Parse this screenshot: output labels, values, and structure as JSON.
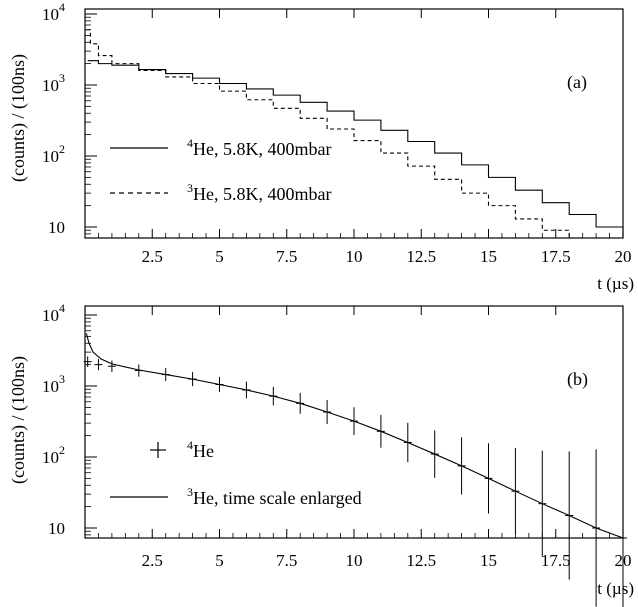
{
  "chart_data": [
    {
      "type": "line",
      "panel_label": "(a)",
      "xlabel": "t (µs)",
      "ylabel": "(counts) / (100ns)",
      "yscale": "log",
      "xlim": [
        0,
        20
      ],
      "ylim": [
        3,
        10000
      ],
      "x_ticks": [
        "2.5",
        "5",
        "7.5",
        "10",
        "12.5",
        "15",
        "17.5",
        "20"
      ],
      "y_ticks": [
        {
          "base": "10",
          "exp": "4"
        },
        {
          "base": "10",
          "exp": "3"
        },
        {
          "base": "10",
          "exp": "2"
        },
        {
          "base": "10",
          "exp": ""
        }
      ],
      "legend_position": "lower-left",
      "series": [
        {
          "name": "He, 5.8K, 400mbar",
          "isotope_sup": "4",
          "style": "solid-histogram",
          "x": [
            0.1,
            0.5,
            1,
            2,
            3,
            4,
            5,
            6,
            7,
            8,
            9,
            10,
            11,
            12,
            13,
            14,
            15,
            16,
            17,
            18,
            19,
            20
          ],
          "y": [
            2200,
            2000,
            1900,
            1650,
            1450,
            1250,
            1050,
            880,
            720,
            570,
            430,
            320,
            230,
            160,
            110,
            75,
            50,
            33,
            22,
            15,
            10,
            7
          ]
        },
        {
          "name": "He, 5.8K, 400mbar",
          "isotope_sup": "3",
          "style": "dashed-histogram",
          "x": [
            0.05,
            0.2,
            0.5,
            1,
            2,
            3,
            4,
            5,
            6,
            7,
            8,
            9,
            10,
            11,
            12,
            13,
            14,
            15,
            16,
            17,
            18,
            19,
            20
          ],
          "y": [
            6000,
            3800,
            2600,
            2000,
            1600,
            1300,
            1050,
            820,
            620,
            470,
            340,
            240,
            165,
            110,
            72,
            47,
            30,
            20,
            13,
            9,
            6,
            4.5,
            3.5
          ]
        }
      ]
    },
    {
      "type": "line",
      "panel_label": "(b)",
      "xlabel": "t (µs)",
      "ylabel": "(counts) / (100ns)",
      "yscale": "log",
      "xlim": [
        0,
        20
      ],
      "ylim": [
        3,
        10000
      ],
      "x_ticks": [
        "2.5",
        "5",
        "7.5",
        "10",
        "12.5",
        "15",
        "17.5",
        "20"
      ],
      "y_ticks": [
        {
          "base": "10",
          "exp": "4"
        },
        {
          "base": "10",
          "exp": "3"
        },
        {
          "base": "10",
          "exp": "2"
        },
        {
          "base": "10",
          "exp": ""
        }
      ],
      "legend_position": "lower-left",
      "series": [
        {
          "name": "He",
          "isotope_sup": "4",
          "style": "error-bars",
          "x": [
            0.1,
            0.5,
            1,
            2,
            3,
            4,
            5,
            6,
            7,
            8,
            9,
            10,
            11,
            12,
            13,
            14,
            15,
            16,
            17,
            18,
            19,
            20
          ],
          "y": [
            2200,
            2000,
            1900,
            1650,
            1450,
            1250,
            1050,
            880,
            720,
            570,
            430,
            320,
            230,
            160,
            110,
            75,
            50,
            33,
            22,
            15,
            10,
            7
          ]
        },
        {
          "name": "He, time scale enlarged",
          "isotope_sup": "3",
          "style": "solid-line",
          "x": [
            0.05,
            0.15,
            0.3,
            0.6,
            1,
            2,
            3,
            4,
            5,
            6,
            7,
            8,
            9,
            10,
            11,
            12,
            13,
            14,
            15,
            16,
            17,
            18,
            19,
            20
          ],
          "y": [
            5500,
            4000,
            3000,
            2400,
            2050,
            1680,
            1450,
            1250,
            1050,
            880,
            720,
            570,
            430,
            320,
            230,
            160,
            110,
            75,
            50,
            33,
            22,
            15,
            10,
            7
          ]
        }
      ]
    }
  ]
}
